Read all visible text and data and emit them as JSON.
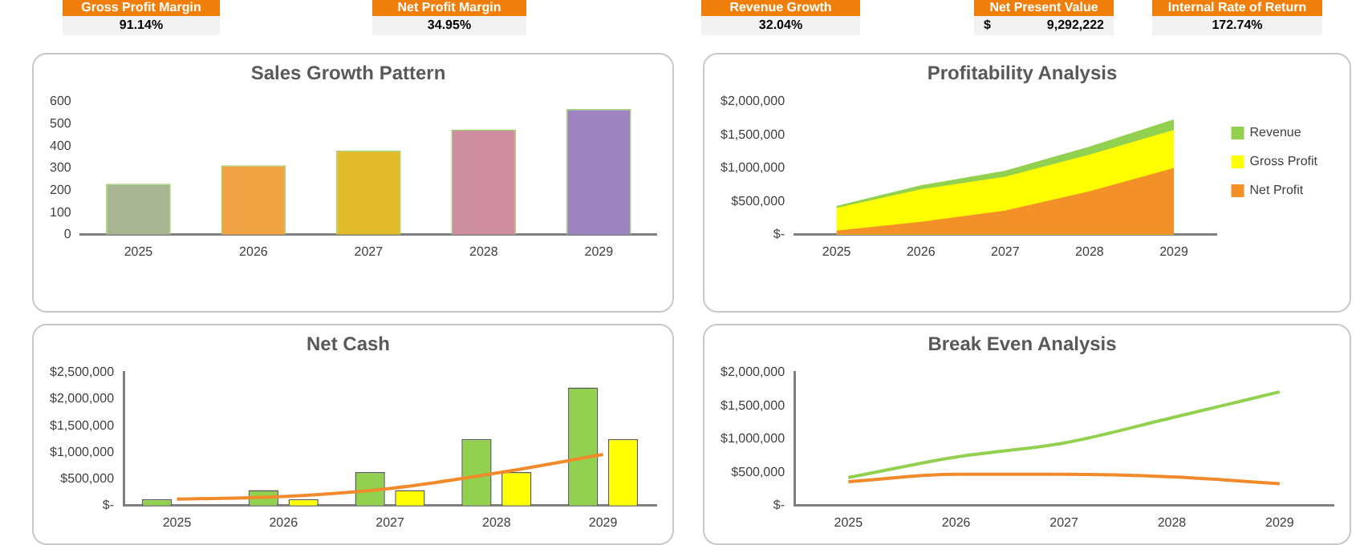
{
  "chart_data": [
    {
      "type": "other",
      "categories": [
        "Gross Profit Margin",
        "Net Profit Margin",
        "Revenue Growth",
        "Net Present Value",
        "Internal Rate of Return"
      ],
      "annotations": [
        "91.14%",
        "34.95%",
        "32.04%",
        "$ 9,292,222",
        "172.74%"
      ]
    },
    {
      "type": "bar",
      "title": "Sales Growth Pattern",
      "categories": [
        "2025",
        "2026",
        "2027",
        "2028",
        "2029"
      ],
      "values": [
        230,
        313,
        380,
        475,
        567
      ],
      "colors": [
        "#a8b592",
        "#f2a444",
        "#e2bb2b",
        "#ce8ea0",
        "#9d84c0"
      ],
      "ylim": [
        0,
        600
      ],
      "yticks": [
        0,
        100,
        200,
        300,
        400,
        500,
        600
      ]
    },
    {
      "type": "area",
      "title": "Profitability Analysis",
      "categories": [
        "2025",
        "2026",
        "2027",
        "2028",
        "2029"
      ],
      "series": [
        {
          "name": "Revenue",
          "color": "#92d050",
          "values": [
            420000,
            730000,
            950000,
            1310000,
            1720000
          ]
        },
        {
          "name": "Gross Profit",
          "color": "#ffff00",
          "values": [
            390000,
            670000,
            860000,
            1190000,
            1560000
          ]
        },
        {
          "name": "Net Profit",
          "color": "#f39028",
          "values": [
            50000,
            180000,
            350000,
            640000,
            990000
          ]
        }
      ],
      "ylim": [
        0,
        2000000
      ],
      "yticks": [
        {
          "value": 0,
          "label": "$-"
        },
        {
          "value": 500000,
          "label": "$500,000"
        },
        {
          "value": 1000000,
          "label": "$1,000,000"
        },
        {
          "value": 1500000,
          "label": "$1,500,000"
        },
        {
          "value": 2000000,
          "label": "$2,000,000"
        }
      ],
      "legend": "right"
    },
    {
      "type": "bar",
      "title": "Net Cash",
      "categories": [
        "2025",
        "2026",
        "2027",
        "2028",
        "2029"
      ],
      "series": [
        {
          "color": "#92d050",
          "values": [
            120000,
            290000,
            630000,
            1250000,
            2220000
          ]
        },
        {
          "color": "#ffff00",
          "values": [
            null,
            120000,
            290000,
            630000,
            1250000
          ]
        },
        {
          "type": "line",
          "color": "#f08a2a",
          "values": [
            120000,
            170000,
            320000,
            610000,
            960000
          ]
        }
      ],
      "ylim": [
        0,
        2500000
      ],
      "yticks": [
        {
          "value": 0,
          "label": "$-"
        },
        {
          "value": 500000,
          "label": "$500,000"
        },
        {
          "value": 1000000,
          "label": "$1,000,000"
        },
        {
          "value": 1500000,
          "label": "$1,500,000"
        },
        {
          "value": 2000000,
          "label": "$2,000,000"
        },
        {
          "value": 2500000,
          "label": "$2,500,000"
        }
      ]
    },
    {
      "type": "line",
      "title": "Break Even Analysis",
      "categories": [
        "2025",
        "2026",
        "2027",
        "2028",
        "2029"
      ],
      "series": [
        {
          "color": "#92d050",
          "values": [
            420000,
            730000,
            940000,
            1320000,
            1710000
          ]
        },
        {
          "color": "#f08a2a",
          "values": [
            360000,
            470000,
            470000,
            430000,
            330000
          ]
        }
      ],
      "ylim": [
        0,
        2000000
      ],
      "yticks": [
        {
          "value": 0,
          "label": "$-"
        },
        {
          "value": 500000,
          "label": "$500,000"
        },
        {
          "value": 1000000,
          "label": "$1,000,000"
        },
        {
          "value": 1500000,
          "label": "$1,500,000"
        },
        {
          "value": 2000000,
          "label": "$2,000,000"
        }
      ]
    }
  ]
}
